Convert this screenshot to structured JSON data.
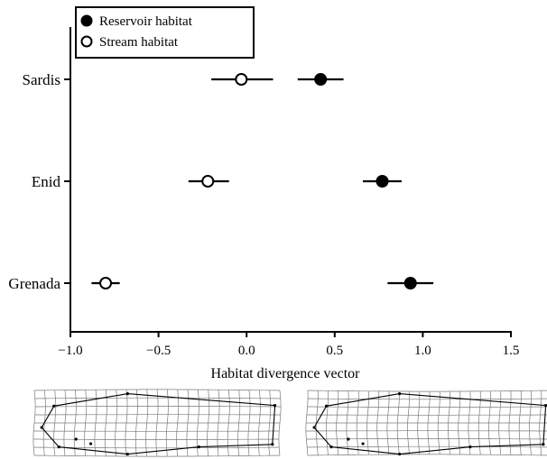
{
  "chart_data": {
    "type": "scatter",
    "xlabel": "Habitat divergence vector",
    "ylabel": "",
    "xlim": [
      -1.0,
      1.5
    ],
    "xticks": [
      -1.0,
      -0.5,
      0.0,
      0.5,
      1.0,
      1.5
    ],
    "xtick_labels": [
      "−1.0",
      "−0.5",
      "0.0",
      "0.5",
      "1.0",
      "1.5"
    ],
    "categories": [
      "Sardis",
      "Enid",
      "Grenada"
    ],
    "legend_position": "top-left",
    "series": [
      {
        "name": "Reservoir habitat",
        "marker": "filled-circle",
        "color": "#000000",
        "values": [
          0.42,
          0.77,
          0.93
        ],
        "err_low": [
          0.29,
          0.66,
          0.8
        ],
        "err_high": [
          0.55,
          0.88,
          1.06
        ]
      },
      {
        "name": "Stream habitat",
        "marker": "open-circle",
        "color": "#000000",
        "values": [
          -0.03,
          -0.22,
          -0.8
        ],
        "err_low": [
          -0.2,
          -0.33,
          -0.88
        ],
        "err_high": [
          0.15,
          -0.1,
          -0.72
        ]
      }
    ]
  },
  "shape_panels": [
    {
      "name": "left-deformation-grid",
      "outline": [
        [
          0.03,
          0.57
        ],
        [
          0.08,
          0.24
        ],
        [
          0.38,
          0.05
        ],
        [
          0.98,
          0.23
        ],
        [
          0.97,
          0.83
        ],
        [
          0.67,
          0.87
        ],
        [
          0.38,
          0.98
        ],
        [
          0.1,
          0.87
        ]
      ],
      "landmarks": [
        [
          0.08,
          0.24
        ],
        [
          0.17,
          0.75
        ],
        [
          0.23,
          0.82
        ],
        [
          0.38,
          0.05
        ],
        [
          0.38,
          0.98
        ],
        [
          0.67,
          0.87
        ],
        [
          0.97,
          0.83
        ],
        [
          0.98,
          0.23
        ],
        [
          0.03,
          0.57
        ],
        [
          0.1,
          0.87
        ]
      ]
    },
    {
      "name": "right-deformation-grid",
      "outline": [
        [
          0.03,
          0.57
        ],
        [
          0.08,
          0.24
        ],
        [
          0.38,
          0.05
        ],
        [
          0.98,
          0.23
        ],
        [
          0.97,
          0.83
        ],
        [
          0.67,
          0.87
        ],
        [
          0.38,
          0.98
        ],
        [
          0.1,
          0.87
        ]
      ],
      "landmarks": [
        [
          0.08,
          0.24
        ],
        [
          0.17,
          0.75
        ],
        [
          0.23,
          0.82
        ],
        [
          0.38,
          0.05
        ],
        [
          0.38,
          0.98
        ],
        [
          0.67,
          0.87
        ],
        [
          0.97,
          0.83
        ],
        [
          0.98,
          0.23
        ],
        [
          0.03,
          0.57
        ],
        [
          0.1,
          0.87
        ]
      ]
    }
  ]
}
